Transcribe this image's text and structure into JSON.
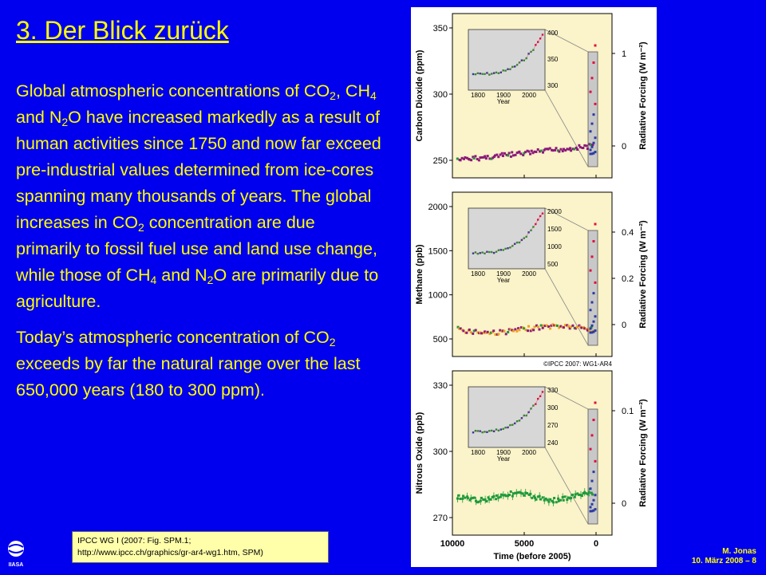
{
  "slide": {
    "title": "3. Der Blick zurück",
    "paragraph1": {
      "t1": "Global atmospheric concentrations of CO",
      "s1": "2",
      "t2": ", CH",
      "s2": "4",
      "t3": " and N",
      "s3": "2",
      "t4": "O have increased markedly as a result of human activities since 1750 and now far exceed pre-industrial values determined from ice-cores spanning many thousands of years. The global increases in CO",
      "s4": "2",
      "t5": " concentration are due primarily to fossil fuel use and land use change, while those of CH",
      "s5": "4",
      "t6": " and N",
      "s6": "2",
      "t7": "O are primarily due to agriculture."
    },
    "paragraph2": {
      "t1": "Today’s atmospheric concentration of CO",
      "s1": "2",
      "t2": " exceeds by far the natural range over the last 650,000 years (180 to 300 ppm)."
    },
    "reference": {
      "line1": "IPCC WG I (2007: Fig. SPM.1;",
      "line2": "http://www.ipcc.ch/graphics/gr-ar4-wg1.htm, SPM)"
    },
    "footer": {
      "author": "M. Jonas",
      "date": "10. März 2008 – 8"
    },
    "logo_text": "IIASA"
  },
  "figure": {
    "copyright": "©IPCC 2007: WG1-AR4",
    "x_tick_labels": [
      "10000",
      "5000",
      "0"
    ],
    "x_axis_label": "Time (before 2005)",
    "inset_x_ticks": [
      "1800",
      "1900",
      "2000"
    ],
    "inset_x_label": "Year",
    "panels": [
      {
        "ylabel": "Carbon Dioxide (ppm)",
        "rlabel": "Radiative Forcing (W m⁻²)",
        "yticks": [
          "350",
          "300",
          "250"
        ],
        "rticks": [
          "1",
          "0"
        ],
        "inset_yticks": [
          "400",
          "350",
          "300"
        ]
      },
      {
        "ylabel": "Methane (ppb)",
        "rlabel": "Radiative Forcing (W m⁻²)",
        "yticks": [
          "2000",
          "1500",
          "1000",
          "500"
        ],
        "rticks": [
          "0.4",
          "0.2",
          "0"
        ],
        "inset_yticks": [
          "2000",
          "1500",
          "1000",
          "500"
        ]
      },
      {
        "ylabel": "Nitrous Oxide (ppb)",
        "rlabel": "Radiative Forcing (W m⁻²)",
        "yticks": [
          "330",
          "300",
          "270"
        ],
        "rticks": [
          "0.1",
          "0"
        ],
        "inset_yticks": [
          "330",
          "300",
          "270",
          "240"
        ]
      }
    ]
  },
  "colors": {
    "background": "#0000ee",
    "text": "#ffff00",
    "reference_box": "#ffffaa",
    "panel": "#fbf3c9",
    "inset": "#d7d7d7",
    "series_purple": "#8b1a7a",
    "series_green": "#1e9a3a",
    "series_red": "#e0103a",
    "series_blue": "#2a3aa0",
    "series_orange": "#f0a020"
  }
}
